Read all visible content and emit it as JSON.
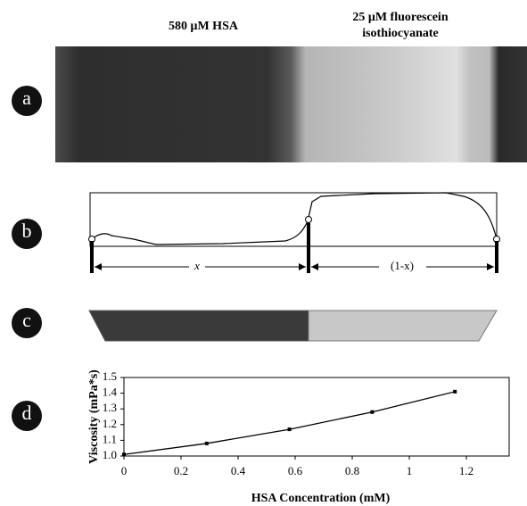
{
  "header": {
    "left": "580 μM HSA",
    "right_line1": "25 μM fluorescein",
    "right_line2": "isothiocyanate"
  },
  "panels": {
    "a": "a",
    "b": "b",
    "c": "c",
    "d": "d"
  },
  "profile": {
    "left_span": "x",
    "right_span": "(1-x)"
  },
  "chart_data": {
    "type": "scatter",
    "line": true,
    "color": "#000000",
    "x_label": "HSA Concentration (mM)",
    "y_label": "Viscosity (mPa*s)",
    "x": [
      0,
      0.29,
      0.58,
      0.87,
      1.16
    ],
    "values": [
      1.01,
      1.08,
      1.17,
      1.28,
      1.41
    ],
    "xlim": [
      0,
      1.35
    ],
    "ylim": [
      1.0,
      1.5
    ],
    "xticks": [
      0,
      0.2,
      0.4,
      0.6,
      0.8,
      1,
      1.2
    ],
    "yticks": [
      {
        "value": 1.0,
        "label": "1.0"
      },
      1.1,
      1.2,
      1.3,
      1.4,
      1.5
    ]
  }
}
